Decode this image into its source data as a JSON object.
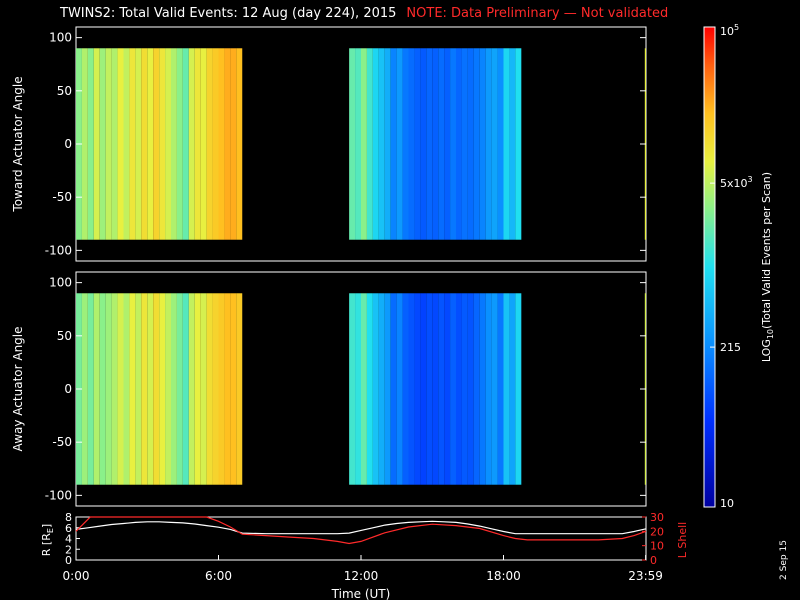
{
  "title": {
    "main": "TWINS2: Total Valid Events: 12 Aug (day 224), 2015",
    "note": "NOTE: Data Preliminary — Not validated"
  },
  "date_stamp": "2 Sep 15",
  "colors": {
    "background": "#000000",
    "foreground": "#ffffff",
    "note": "#ff2a2a",
    "r_line": "#ffffff",
    "lshell_line": "#ff2a2a"
  },
  "chart_data": [
    {
      "type": "heatmap",
      "ylabel": "Toward Actuator Angle",
      "ylim": [
        -110,
        110
      ],
      "yticks": [
        "100",
        "50",
        "0",
        "-50",
        "-100"
      ],
      "angle_range": [
        -90,
        90
      ],
      "xlim_hours": [
        0,
        24
      ],
      "data_segments_hours": [
        [
          0.0,
          7.0
        ],
        [
          11.5,
          18.8
        ],
        [
          23.95,
          24.0
        ]
      ],
      "columns": [
        {
          "t": 0.0,
          "v": 0.62
        },
        {
          "t": 0.25,
          "v": 0.66
        },
        {
          "t": 0.5,
          "v": 0.62
        },
        {
          "t": 0.75,
          "v": 0.7
        },
        {
          "t": 1.0,
          "v": 0.64
        },
        {
          "t": 1.25,
          "v": 0.68
        },
        {
          "t": 1.5,
          "v": 0.66
        },
        {
          "t": 1.75,
          "v": 0.72
        },
        {
          "t": 2.0,
          "v": 0.68
        },
        {
          "t": 2.25,
          "v": 0.74
        },
        {
          "t": 2.5,
          "v": 0.7
        },
        {
          "t": 2.75,
          "v": 0.76
        },
        {
          "t": 3.0,
          "v": 0.72
        },
        {
          "t": 3.25,
          "v": 0.78
        },
        {
          "t": 3.5,
          "v": 0.74
        },
        {
          "t": 3.75,
          "v": 0.7
        },
        {
          "t": 4.0,
          "v": 0.66
        },
        {
          "t": 4.25,
          "v": 0.62
        },
        {
          "t": 4.5,
          "v": 0.58
        },
        {
          "t": 4.75,
          "v": 0.7
        },
        {
          "t": 5.0,
          "v": 0.74
        },
        {
          "t": 5.25,
          "v": 0.72
        },
        {
          "t": 5.5,
          "v": 0.78
        },
        {
          "t": 5.75,
          "v": 0.8
        },
        {
          "t": 6.0,
          "v": 0.82
        },
        {
          "t": 6.25,
          "v": 0.84
        },
        {
          "t": 6.5,
          "v": 0.84
        },
        {
          "t": 6.75,
          "v": 0.82
        },
        {
          "t": 11.5,
          "v": 0.58
        },
        {
          "t": 11.75,
          "v": 0.56
        },
        {
          "t": 12.0,
          "v": 0.62
        },
        {
          "t": 12.25,
          "v": 0.54
        },
        {
          "t": 12.5,
          "v": 0.48
        },
        {
          "t": 12.75,
          "v": 0.44
        },
        {
          "t": 13.0,
          "v": 0.4
        },
        {
          "t": 13.25,
          "v": 0.32
        },
        {
          "t": 13.5,
          "v": 0.36
        },
        {
          "t": 13.75,
          "v": 0.3
        },
        {
          "t": 14.0,
          "v": 0.28
        },
        {
          "t": 14.25,
          "v": 0.26
        },
        {
          "t": 14.5,
          "v": 0.25
        },
        {
          "t": 14.75,
          "v": 0.27
        },
        {
          "t": 15.0,
          "v": 0.26
        },
        {
          "t": 15.25,
          "v": 0.28
        },
        {
          "t": 15.5,
          "v": 0.26
        },
        {
          "t": 15.75,
          "v": 0.3
        },
        {
          "t": 16.0,
          "v": 0.27
        },
        {
          "t": 16.25,
          "v": 0.29
        },
        {
          "t": 16.5,
          "v": 0.28
        },
        {
          "t": 16.75,
          "v": 0.3
        },
        {
          "t": 17.0,
          "v": 0.32
        },
        {
          "t": 17.25,
          "v": 0.36
        },
        {
          "t": 17.5,
          "v": 0.38
        },
        {
          "t": 17.75,
          "v": 0.34
        },
        {
          "t": 18.0,
          "v": 0.48
        },
        {
          "t": 18.25,
          "v": 0.42
        },
        {
          "t": 18.5,
          "v": 0.5
        },
        {
          "t": 23.95,
          "v": 0.72
        }
      ]
    },
    {
      "type": "heatmap",
      "ylabel": "Away Actuator Angle",
      "ylim": [
        -110,
        110
      ],
      "yticks": [
        "100",
        "50",
        "0",
        "-50",
        "-100"
      ],
      "angle_range": [
        -90,
        90
      ],
      "xlim_hours": [
        0,
        24
      ],
      "data_segments_hours": [
        [
          0.0,
          7.0
        ],
        [
          11.5,
          18.8
        ],
        [
          23.95,
          24.0
        ]
      ],
      "columns": [
        {
          "t": 0.0,
          "v": 0.6
        },
        {
          "t": 0.25,
          "v": 0.64
        },
        {
          "t": 0.5,
          "v": 0.6
        },
        {
          "t": 0.75,
          "v": 0.66
        },
        {
          "t": 1.0,
          "v": 0.62
        },
        {
          "t": 1.25,
          "v": 0.64
        },
        {
          "t": 1.5,
          "v": 0.66
        },
        {
          "t": 1.75,
          "v": 0.7
        },
        {
          "t": 2.0,
          "v": 0.66
        },
        {
          "t": 2.25,
          "v": 0.72
        },
        {
          "t": 2.5,
          "v": 0.68
        },
        {
          "t": 2.75,
          "v": 0.74
        },
        {
          "t": 3.0,
          "v": 0.7
        },
        {
          "t": 3.25,
          "v": 0.76
        },
        {
          "t": 3.5,
          "v": 0.72
        },
        {
          "t": 3.75,
          "v": 0.68
        },
        {
          "t": 4.0,
          "v": 0.64
        },
        {
          "t": 4.25,
          "v": 0.6
        },
        {
          "t": 4.5,
          "v": 0.56
        },
        {
          "t": 4.75,
          "v": 0.68
        },
        {
          "t": 5.0,
          "v": 0.72
        },
        {
          "t": 5.25,
          "v": 0.7
        },
        {
          "t": 5.5,
          "v": 0.76
        },
        {
          "t": 5.75,
          "v": 0.78
        },
        {
          "t": 6.0,
          "v": 0.8
        },
        {
          "t": 6.25,
          "v": 0.82
        },
        {
          "t": 6.5,
          "v": 0.82
        },
        {
          "t": 6.75,
          "v": 0.8
        },
        {
          "t": 11.5,
          "v": 0.54
        },
        {
          "t": 11.75,
          "v": 0.52
        },
        {
          "t": 12.0,
          "v": 0.58
        },
        {
          "t": 12.25,
          "v": 0.5
        },
        {
          "t": 12.5,
          "v": 0.44
        },
        {
          "t": 12.75,
          "v": 0.4
        },
        {
          "t": 13.0,
          "v": 0.36
        },
        {
          "t": 13.25,
          "v": 0.28
        },
        {
          "t": 13.5,
          "v": 0.32
        },
        {
          "t": 13.75,
          "v": 0.26
        },
        {
          "t": 14.0,
          "v": 0.24
        },
        {
          "t": 14.25,
          "v": 0.22
        },
        {
          "t": 14.5,
          "v": 0.21
        },
        {
          "t": 14.75,
          "v": 0.23
        },
        {
          "t": 15.0,
          "v": 0.22
        },
        {
          "t": 15.25,
          "v": 0.24
        },
        {
          "t": 15.5,
          "v": 0.22
        },
        {
          "t": 15.75,
          "v": 0.26
        },
        {
          "t": 16.0,
          "v": 0.23
        },
        {
          "t": 16.25,
          "v": 0.25
        },
        {
          "t": 16.5,
          "v": 0.24
        },
        {
          "t": 16.75,
          "v": 0.27
        },
        {
          "t": 17.0,
          "v": 0.3
        },
        {
          "t": 17.25,
          "v": 0.34
        },
        {
          "t": 17.5,
          "v": 0.36
        },
        {
          "t": 17.75,
          "v": 0.3
        },
        {
          "t": 18.0,
          "v": 0.44
        },
        {
          "t": 18.25,
          "v": 0.38
        },
        {
          "t": 18.5,
          "v": 0.48
        },
        {
          "t": 23.95,
          "v": 0.7
        }
      ]
    },
    {
      "type": "line",
      "ylabel": "R [R",
      "ylabel_sub": "E",
      "ylabel_end": "]",
      "ylim": [
        0,
        8
      ],
      "yticks": [
        "8",
        "6",
        "4",
        "2",
        "0"
      ],
      "y2label": "L Shell",
      "y2lim": [
        0,
        30
      ],
      "y2ticks": [
        "30",
        "20",
        "10",
        "0"
      ],
      "xlim_hours": [
        0,
        24
      ],
      "xticks": [
        "0:00",
        "6:00",
        "12:00",
        "18:00",
        "23:59"
      ],
      "xlabel": "Time (UT)",
      "series": [
        {
          "axis": "left",
          "x": [
            0,
            0.5,
            1,
            1.5,
            2,
            2.5,
            3,
            3.5,
            4,
            4.5,
            5,
            5.5,
            6,
            6.5,
            7,
            8,
            9,
            10,
            11,
            11.5,
            12,
            12.5,
            13,
            13.5,
            14,
            14.5,
            15,
            15.5,
            16,
            16.5,
            17,
            17.5,
            18,
            18.5,
            19,
            20,
            21,
            22,
            23,
            23.5,
            24
          ],
          "y": [
            5.7,
            6.0,
            6.3,
            6.6,
            6.8,
            7.0,
            7.1,
            7.1,
            7.0,
            6.9,
            6.7,
            6.4,
            6.1,
            5.7,
            5.0,
            4.9,
            4.9,
            4.9,
            4.9,
            5.0,
            5.5,
            6.0,
            6.5,
            6.8,
            7.0,
            7.1,
            7.2,
            7.1,
            7.0,
            6.7,
            6.3,
            5.8,
            5.3,
            4.9,
            4.9,
            4.9,
            4.9,
            4.9,
            4.9,
            5.3,
            5.8
          ]
        },
        {
          "axis": "right",
          "x": [
            0,
            0.3,
            0.6,
            1.0,
            5.5,
            6.0,
            6.5,
            7.0,
            8,
            9,
            10,
            11,
            11.5,
            12,
            13,
            14,
            15,
            16,
            17,
            18,
            18.5,
            19,
            20,
            21,
            22,
            23,
            23.5,
            24
          ],
          "y": [
            20,
            25,
            30,
            34,
            34,
            27,
            23,
            18,
            17,
            16,
            15,
            13,
            11.5,
            13,
            19,
            23,
            25,
            24,
            22,
            17,
            15,
            14,
            14,
            14,
            14,
            15,
            17,
            20
          ]
        }
      ]
    }
  ],
  "colorbar": {
    "label": "LOG",
    "label_sub": "10",
    "label_rest": "(Total Valid Events per Scan)",
    "scale": "log",
    "range": [
      10,
      100000
    ],
    "ticks": [
      {
        "value": 100000,
        "base": "10",
        "exp": "5"
      },
      {
        "value": 5000,
        "base": "5x10",
        "exp": "3"
      },
      {
        "value": 215,
        "base": "215",
        "exp": ""
      },
      {
        "value": 10,
        "base": "10",
        "exp": ""
      }
    ]
  }
}
